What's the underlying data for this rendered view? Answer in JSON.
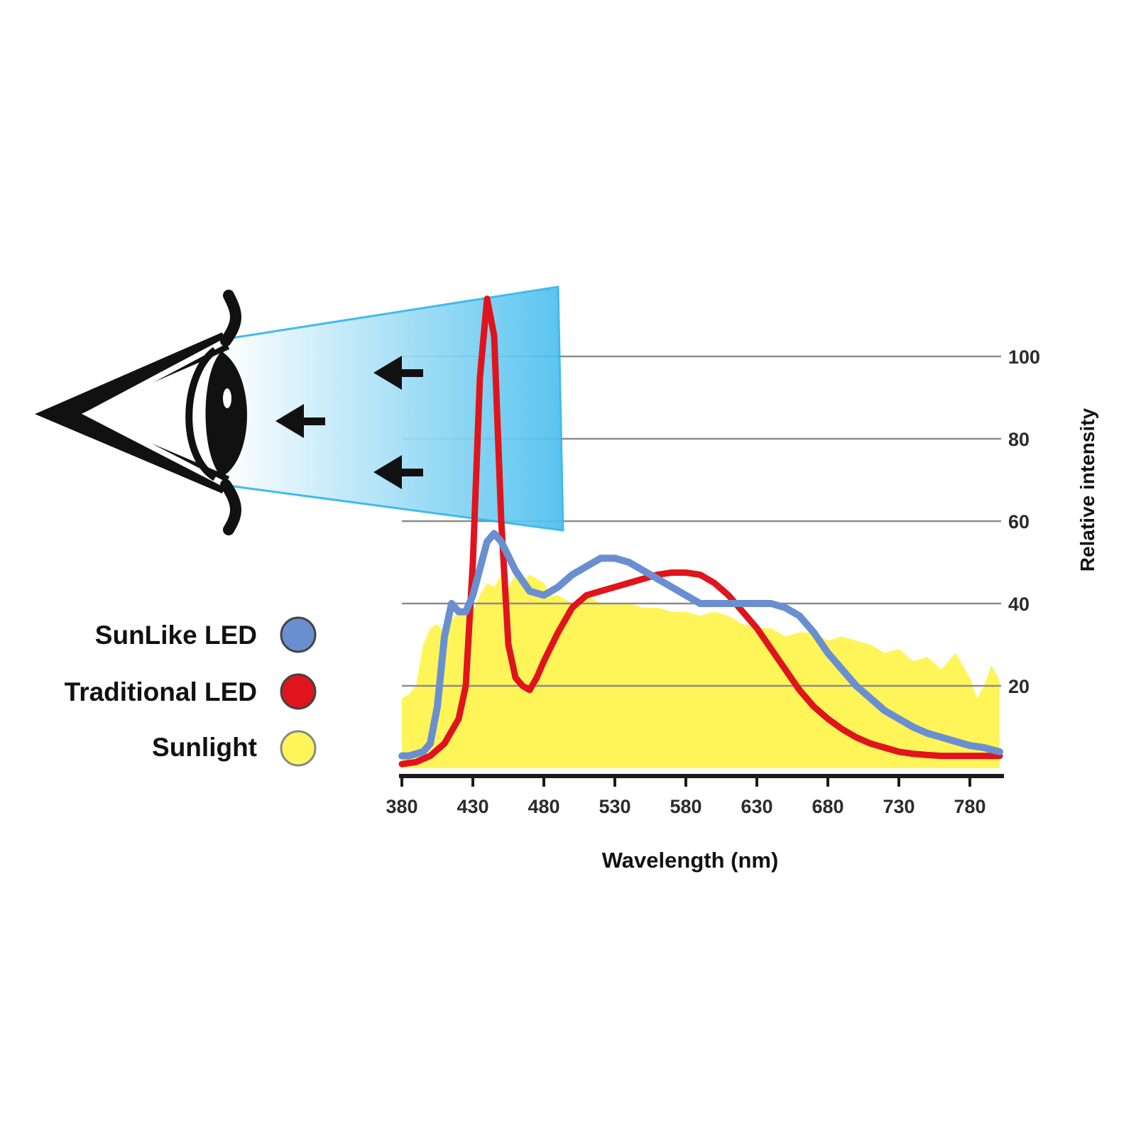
{
  "chart_data": {
    "type": "line",
    "title": "",
    "xlabel": "Wavelength (nm)",
    "ylabel": "Relative intensity",
    "xlim": [
      375,
      805
    ],
    "ylim": [
      0,
      115
    ],
    "x_ticks": [
      380,
      430,
      480,
      530,
      580,
      630,
      680,
      730,
      780
    ],
    "y_ticks": [
      20,
      40,
      60,
      80,
      100
    ],
    "grid": "horizontal",
    "legend_position": "left",
    "series": [
      {
        "name": "SunLike LED",
        "style": "line",
        "color": "#6a8fd0",
        "x": [
          375,
          385,
          395,
          400,
          405,
          410,
          415,
          420,
          425,
          430,
          440,
          445,
          450,
          460,
          470,
          480,
          490,
          500,
          510,
          520,
          530,
          540,
          550,
          560,
          570,
          580,
          590,
          600,
          610,
          620,
          630,
          640,
          650,
          660,
          670,
          680,
          690,
          700,
          710,
          720,
          730,
          740,
          750,
          760,
          770,
          780,
          790,
          805
        ],
        "y": [
          3,
          3,
          4,
          6,
          15,
          32,
          40,
          38,
          38,
          42,
          55,
          57,
          55,
          48,
          43,
          42,
          44,
          47,
          49,
          51,
          51,
          50,
          48,
          46,
          44,
          42,
          40,
          40,
          40,
          40,
          40,
          40,
          39,
          37,
          33,
          28,
          24,
          20,
          17,
          14,
          12,
          10,
          8.5,
          7.5,
          6.5,
          5.5,
          5,
          4
        ]
      },
      {
        "name": "Traditional LED",
        "style": "line",
        "color": "#e0141c",
        "x": [
          380,
          390,
          400,
          410,
          420,
          425,
          430,
          435,
          440,
          445,
          450,
          455,
          460,
          465,
          470,
          475,
          480,
          490,
          500,
          510,
          520,
          530,
          540,
          550,
          560,
          570,
          580,
          590,
          600,
          610,
          620,
          630,
          640,
          650,
          660,
          670,
          680,
          690,
          700,
          710,
          720,
          730,
          740,
          750,
          760,
          770,
          780,
          790,
          805
        ],
        "y": [
          1,
          1.5,
          3,
          6,
          12,
          20,
          50,
          95,
          114,
          105,
          60,
          30,
          22,
          20,
          19,
          22,
          26,
          33,
          39,
          42,
          43,
          44,
          45,
          46,
          47,
          47.5,
          47.5,
          47,
          45,
          42,
          38,
          34,
          29,
          24,
          19,
          15,
          12,
          9.5,
          7.5,
          6,
          5,
          4,
          3.5,
          3.2,
          3,
          3,
          3,
          3,
          3
        ]
      },
      {
        "name": "Sunlight",
        "style": "area",
        "color": "#fff559",
        "x": [
          375,
          385,
          390,
          395,
          400,
          405,
          410,
          415,
          420,
          425,
          430,
          435,
          440,
          445,
          450,
          455,
          460,
          465,
          470,
          475,
          480,
          485,
          490,
          500,
          510,
          520,
          530,
          540,
          550,
          560,
          570,
          580,
          590,
          600,
          610,
          620,
          630,
          640,
          650,
          660,
          670,
          680,
          690,
          700,
          710,
          720,
          730,
          740,
          750,
          760,
          770,
          780,
          785,
          790,
          795,
          800,
          805
        ],
        "y": [
          17,
          18,
          20,
          30,
          34,
          35,
          33,
          36,
          38,
          37,
          38,
          42,
          45,
          44,
          47,
          44,
          47,
          45,
          47,
          46,
          45,
          42,
          42,
          40,
          42,
          40,
          40,
          40,
          39,
          39,
          38,
          38,
          37,
          38,
          37,
          35,
          34,
          34,
          32,
          33,
          33,
          31,
          32,
          31,
          30,
          28,
          29,
          26,
          27,
          24,
          28,
          22,
          17,
          20,
          25,
          22,
          21
        ]
      }
    ]
  },
  "legend": [
    {
      "label": "SunLike LED",
      "color": "#6a8fd0"
    },
    {
      "label": "Traditional LED",
      "color": "#e0141c"
    },
    {
      "label": "Sunlight",
      "color": "#fff559"
    }
  ],
  "illustration": {
    "icon": "eye-icon",
    "beam_color": "#4cc0ee",
    "arrow_icon": "arrow-left-icon"
  }
}
